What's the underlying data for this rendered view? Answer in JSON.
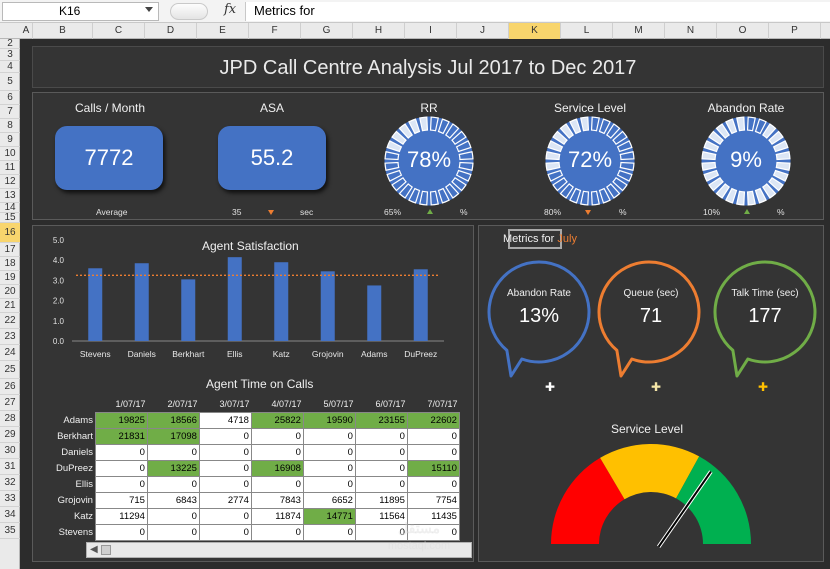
{
  "formula_bar": {
    "cell_ref": "K16",
    "fx": "fx",
    "content": "Metrics for"
  },
  "columns": [
    "A",
    "B",
    "C",
    "D",
    "E",
    "F",
    "G",
    "H",
    "I",
    "J",
    "K",
    "L",
    "M",
    "N",
    "O",
    "P"
  ],
  "selected_column": "K",
  "rows": [
    "2",
    "3",
    "4",
    "5",
    "6",
    "7",
    "8",
    "9",
    "10",
    "11",
    "12",
    "13",
    "14",
    "15",
    "16",
    "17",
    "18",
    "19",
    "20",
    "21",
    "22",
    "23",
    "24",
    "25",
    "26",
    "27",
    "28",
    "29",
    "30",
    "31",
    "32",
    "33",
    "34",
    "35"
  ],
  "title": "JPD Call Centre Analysis Jul 2017 to Dec 2017",
  "kpis": {
    "calls": {
      "label": "Calls / Month",
      "value": "7772",
      "sub": "Average"
    },
    "asa": {
      "label": "ASA",
      "value": "55.2",
      "target": "35",
      "unit": "sec",
      "trend": "down"
    },
    "rr": {
      "label": "RR",
      "value": "78%",
      "target": "65%",
      "unit": "%",
      "trend": "up",
      "fraction": 0.78
    },
    "service_level": {
      "label": "Service Level",
      "value": "72%",
      "target": "80%",
      "unit": "%",
      "trend": "down",
      "fraction": 0.72
    },
    "abandon_rate": {
      "label": "Abandon Rate",
      "value": "9%",
      "target": "10%",
      "unit": "%",
      "trend": "up",
      "fraction": 0.09
    }
  },
  "chart_data": {
    "type": "bar",
    "title": "Agent Satisfaction",
    "categories": [
      "Stevens",
      "Daniels",
      "Berkhart",
      "Ellis",
      "Katz",
      "Grojovin",
      "Adams",
      "DuPreez"
    ],
    "values": [
      3.6,
      3.85,
      3.05,
      4.15,
      3.9,
      3.45,
      2.75,
      3.55
    ],
    "average": 3.25,
    "yticks": [
      "0.0",
      "1.0",
      "2.0",
      "3.0",
      "4.0",
      "5.0"
    ],
    "ylim": [
      0,
      5
    ],
    "colors": {
      "bar": "#4472c4",
      "average": "#ed7d31"
    }
  },
  "agent_time": {
    "title": "Agent Time on Calls",
    "dates": [
      "1/07/17",
      "2/07/17",
      "3/07/17",
      "4/07/17",
      "5/07/17",
      "6/07/17",
      "7/07/17"
    ],
    "rows": [
      {
        "name": "Adams",
        "values": [
          "19825",
          "18566",
          "4718",
          "25822",
          "19590",
          "23155",
          "22602"
        ],
        "green": [
          1,
          1,
          0,
          1,
          1,
          1,
          1
        ]
      },
      {
        "name": "Berkhart",
        "values": [
          "21831",
          "17098",
          "0",
          "0",
          "0",
          "0",
          "0"
        ],
        "green": [
          1,
          1,
          0,
          0,
          0,
          0,
          0
        ]
      },
      {
        "name": "Daniels",
        "values": [
          "0",
          "0",
          "0",
          "0",
          "0",
          "0",
          "0"
        ],
        "green": [
          0,
          0,
          0,
          0,
          0,
          0,
          0
        ]
      },
      {
        "name": "DuPreez",
        "values": [
          "0",
          "13225",
          "0",
          "16908",
          "0",
          "0",
          "15110"
        ],
        "green": [
          0,
          1,
          0,
          1,
          0,
          0,
          1
        ]
      },
      {
        "name": "Ellis",
        "values": [
          "0",
          "0",
          "0",
          "0",
          "0",
          "0",
          "0"
        ],
        "green": [
          0,
          0,
          0,
          0,
          0,
          0,
          0
        ]
      },
      {
        "name": "Grojovin",
        "values": [
          "715",
          "6843",
          "2774",
          "7843",
          "6652",
          "11895",
          "7754"
        ],
        "green": [
          0,
          0,
          0,
          0,
          0,
          0,
          0
        ]
      },
      {
        "name": "Katz",
        "values": [
          "11294",
          "0",
          "0",
          "11874",
          "14771",
          "11564",
          "11435"
        ],
        "green": [
          0,
          0,
          0,
          0,
          1,
          0,
          0
        ]
      },
      {
        "name": "Stevens",
        "values": [
          "0",
          "0",
          "0",
          "0",
          "0",
          "0",
          "0"
        ],
        "green": [
          0,
          0,
          0,
          0,
          0,
          0,
          0
        ]
      }
    ]
  },
  "metrics": {
    "label": "Metrics for",
    "month": "July",
    "abandon": {
      "label": "Abandon Rate",
      "value": "13%",
      "color": "#4472c4"
    },
    "queue": {
      "label": "Queue  (sec)",
      "value": "71",
      "color": "#ed7d31"
    },
    "talk": {
      "label": "Talk Time (sec)",
      "value": "177",
      "color": "#70ad47"
    }
  },
  "gauge": {
    "title": "Service Level",
    "fraction": 0.72,
    "colors": [
      "#ff0000",
      "#ffc000",
      "#00b050"
    ]
  },
  "watermark": {
    "line1": "مستقل",
    "line2": "mostaql.com"
  }
}
